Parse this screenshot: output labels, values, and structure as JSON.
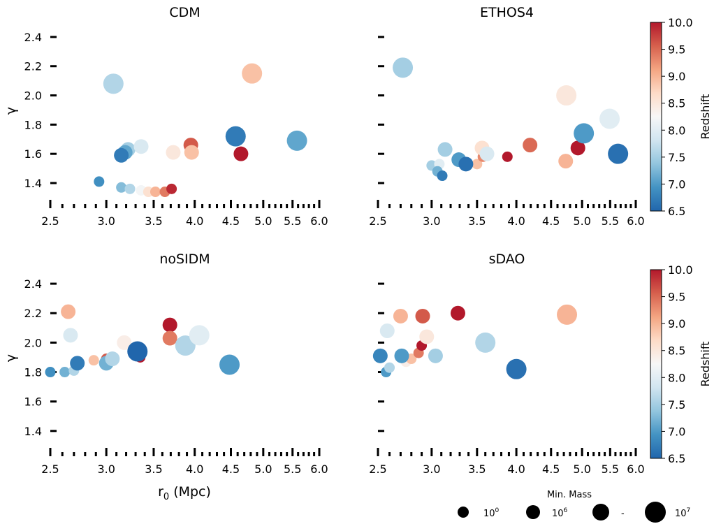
{
  "colorbar": {
    "label": "Redshift",
    "min": 6.5,
    "max": 10.0,
    "ticks": [
      "10.0",
      "9.5",
      "9.0",
      "8.5",
      "8.0",
      "7.5",
      "7.0",
      "6.5"
    ],
    "stops": [
      "#2166ac",
      "#4393c3",
      "#92c5de",
      "#d1e5f0",
      "#f7f7f7",
      "#fddbc7",
      "#f4a582",
      "#d6604d",
      "#b2182b"
    ]
  },
  "legend": {
    "title": "Min. Mass",
    "entries": [
      {
        "base": "10",
        "exp": "0",
        "text": ""
      },
      {
        "base": "10",
        "exp": "6",
        "text": ""
      },
      {
        "base": "",
        "exp": "",
        "text": "-"
      },
      {
        "base": "10",
        "exp": "7",
        "text": ""
      }
    ]
  },
  "axes": {
    "xlabel_base": "r",
    "xlabel_sub": "0",
    "xlabel_rest": " (Mpc)",
    "ylabel": "γ",
    "xticks": [
      "2.5",
      "3.0",
      "3.5",
      "4.0",
      "4.5",
      "5.0",
      "5.5",
      "6.0"
    ],
    "xtick_values": [
      2.5,
      3.0,
      3.5,
      4.0,
      4.5,
      5.0,
      5.5,
      6.0
    ],
    "xscale": "log",
    "xlim": [
      2.5,
      6.0
    ]
  },
  "chart_data": [
    {
      "type": "scatter",
      "title": "CDM",
      "ylim": [
        1.29,
        2.5
      ],
      "yticks": [
        "1.4",
        "1.6",
        "1.8",
        "2.0",
        "2.2",
        "2.4"
      ],
      "ytick_values": [
        1.4,
        1.6,
        1.8,
        2.0,
        2.2,
        2.4
      ],
      "points": [
        {
          "x": 2.93,
          "y": 1.41,
          "z": 6.9,
          "size": 0
        },
        {
          "x": 3.15,
          "y": 1.37,
          "z": 7.3,
          "size": 0
        },
        {
          "x": 3.24,
          "y": 1.36,
          "z": 7.6,
          "size": 0
        },
        {
          "x": 3.36,
          "y": 1.35,
          "z": 8.2,
          "size": 0
        },
        {
          "x": 3.44,
          "y": 1.34,
          "z": 8.6,
          "size": 0
        },
        {
          "x": 3.52,
          "y": 1.34,
          "z": 9.0,
          "size": 0
        },
        {
          "x": 3.63,
          "y": 1.34,
          "z": 9.4,
          "size": 0
        },
        {
          "x": 3.71,
          "y": 1.36,
          "z": 9.9,
          "size": 0
        },
        {
          "x": 3.22,
          "y": 1.63,
          "z": 7.5,
          "size": 1
        },
        {
          "x": 3.19,
          "y": 1.61,
          "z": 7.1,
          "size": 1
        },
        {
          "x": 3.15,
          "y": 1.59,
          "z": 6.7,
          "size": 1
        },
        {
          "x": 3.36,
          "y": 1.65,
          "z": 7.9,
          "size": 1
        },
        {
          "x": 3.73,
          "y": 1.61,
          "z": 8.5,
          "size": 1
        },
        {
          "x": 3.95,
          "y": 1.66,
          "z": 9.6,
          "size": 1
        },
        {
          "x": 3.96,
          "y": 1.61,
          "z": 8.9,
          "size": 1
        },
        {
          "x": 4.65,
          "y": 1.6,
          "z": 10.0,
          "size": 1
        },
        {
          "x": 3.07,
          "y": 2.08,
          "z": 7.6,
          "size": 2
        },
        {
          "x": 4.57,
          "y": 1.72,
          "z": 6.7,
          "size": 2
        },
        {
          "x": 5.58,
          "y": 1.69,
          "z": 7.1,
          "size": 2
        },
        {
          "x": 4.82,
          "y": 2.15,
          "z": 8.9,
          "size": 2
        }
      ]
    },
    {
      "type": "scatter",
      "title": "ETHOS4",
      "ylim": [
        1.29,
        2.5
      ],
      "yticks": [
        "1.4",
        "1.6",
        "1.8",
        "2.0",
        "2.2",
        "2.4"
      ],
      "ytick_values": [
        1.4,
        1.6,
        1.8,
        2.0,
        2.2,
        2.4
      ],
      "points": [
        {
          "x": 3.0,
          "y": 1.52,
          "z": 7.5,
          "size": 0
        },
        {
          "x": 3.08,
          "y": 1.53,
          "z": 8.0,
          "size": 0
        },
        {
          "x": 3.06,
          "y": 1.48,
          "z": 7.2,
          "size": 0
        },
        {
          "x": 3.11,
          "y": 1.45,
          "z": 6.7,
          "size": 0
        },
        {
          "x": 3.5,
          "y": 1.53,
          "z": 8.9,
          "size": 0
        },
        {
          "x": 3.57,
          "y": 1.58,
          "z": 9.3,
          "size": 0
        },
        {
          "x": 3.88,
          "y": 1.58,
          "z": 10.0,
          "size": 0
        },
        {
          "x": 3.14,
          "y": 1.63,
          "z": 7.5,
          "size": 1
        },
        {
          "x": 3.29,
          "y": 1.56,
          "z": 7.0,
          "size": 1
        },
        {
          "x": 3.37,
          "y": 1.53,
          "z": 6.6,
          "size": 1
        },
        {
          "x": 3.56,
          "y": 1.64,
          "z": 8.6,
          "size": 1
        },
        {
          "x": 3.62,
          "y": 1.6,
          "z": 7.9,
          "size": 1
        },
        {
          "x": 4.19,
          "y": 1.66,
          "z": 9.5,
          "size": 1
        },
        {
          "x": 4.73,
          "y": 1.55,
          "z": 9.0,
          "size": 1
        },
        {
          "x": 4.93,
          "y": 1.64,
          "z": 10.0,
          "size": 1
        },
        {
          "x": 2.72,
          "y": 2.19,
          "z": 7.5,
          "size": 2
        },
        {
          "x": 4.74,
          "y": 2.0,
          "z": 8.5,
          "size": 2
        },
        {
          "x": 5.03,
          "y": 1.74,
          "z": 7.0,
          "size": 2
        },
        {
          "x": 5.49,
          "y": 1.84,
          "z": 8.0,
          "size": 2
        },
        {
          "x": 5.65,
          "y": 1.6,
          "z": 6.6,
          "size": 2
        }
      ]
    },
    {
      "type": "scatter",
      "title": "noSIDM",
      "ylim": [
        1.29,
        2.5
      ],
      "yticks": [
        "1.4",
        "1.6",
        "1.8",
        "2.0",
        "2.2",
        "2.4"
      ],
      "ytick_values": [
        1.4,
        1.6,
        1.8,
        2.0,
        2.2,
        2.4
      ],
      "points": [
        {
          "x": 2.5,
          "y": 1.8,
          "z": 6.9,
          "size": 0
        },
        {
          "x": 2.62,
          "y": 1.8,
          "z": 7.2,
          "size": 0
        },
        {
          "x": 2.7,
          "y": 1.81,
          "z": 7.6,
          "size": 0
        },
        {
          "x": 2.88,
          "y": 1.88,
          "z": 8.9,
          "size": 0
        },
        {
          "x": 3.0,
          "y": 1.89,
          "z": 9.6,
          "size": 0
        },
        {
          "x": 3.35,
          "y": 1.9,
          "z": 10.0,
          "size": 0
        },
        {
          "x": 2.73,
          "y": 1.86,
          "z": 6.7,
          "size": 1
        },
        {
          "x": 3.0,
          "y": 1.86,
          "z": 7.2,
          "size": 1
        },
        {
          "x": 3.06,
          "y": 1.89,
          "z": 7.6,
          "size": 1
        },
        {
          "x": 2.65,
          "y": 2.21,
          "z": 9.0,
          "size": 1
        },
        {
          "x": 2.67,
          "y": 2.05,
          "z": 7.9,
          "size": 1
        },
        {
          "x": 3.18,
          "y": 2.0,
          "z": 8.4,
          "size": 1
        },
        {
          "x": 3.69,
          "y": 2.12,
          "z": 10.0,
          "size": 1
        },
        {
          "x": 3.69,
          "y": 2.03,
          "z": 9.4,
          "size": 1
        },
        {
          "x": 3.32,
          "y": 1.94,
          "z": 6.5,
          "size": 2
        },
        {
          "x": 3.88,
          "y": 1.98,
          "z": 7.6,
          "size": 2
        },
        {
          "x": 4.06,
          "y": 2.05,
          "z": 8.0,
          "size": 2
        },
        {
          "x": 4.48,
          "y": 1.85,
          "z": 7.0,
          "size": 2
        }
      ]
    },
    {
      "type": "scatter",
      "title": "sDAO",
      "ylim": [
        1.29,
        2.5
      ],
      "yticks": [
        "1.4",
        "1.6",
        "1.8",
        "2.0",
        "2.2",
        "2.4"
      ],
      "ytick_values": [
        1.4,
        1.6,
        1.8,
        2.0,
        2.2,
        2.4
      ],
      "points": [
        {
          "x": 2.57,
          "y": 1.8,
          "z": 7.0,
          "size": 0
        },
        {
          "x": 2.6,
          "y": 1.83,
          "z": 7.6,
          "size": 0
        },
        {
          "x": 2.75,
          "y": 1.87,
          "z": 8.4,
          "size": 0
        },
        {
          "x": 2.8,
          "y": 1.89,
          "z": 8.9,
          "size": 0
        },
        {
          "x": 2.87,
          "y": 1.93,
          "z": 9.4,
          "size": 0
        },
        {
          "x": 2.9,
          "y": 1.98,
          "z": 10.0,
          "size": 0
        },
        {
          "x": 2.52,
          "y": 1.91,
          "z": 6.8,
          "size": 1
        },
        {
          "x": 2.58,
          "y": 2.08,
          "z": 7.9,
          "size": 1
        },
        {
          "x": 2.71,
          "y": 1.91,
          "z": 7.0,
          "size": 1
        },
        {
          "x": 2.7,
          "y": 2.18,
          "z": 9.0,
          "size": 1
        },
        {
          "x": 2.91,
          "y": 2.18,
          "z": 9.6,
          "size": 1
        },
        {
          "x": 2.95,
          "y": 2.04,
          "z": 8.5,
          "size": 1
        },
        {
          "x": 3.04,
          "y": 1.91,
          "z": 7.5,
          "size": 1
        },
        {
          "x": 3.28,
          "y": 2.2,
          "z": 10.0,
          "size": 1
        },
        {
          "x": 3.6,
          "y": 2.0,
          "z": 7.6,
          "size": 2
        },
        {
          "x": 4.0,
          "y": 1.82,
          "z": 6.6,
          "size": 2
        },
        {
          "x": 4.75,
          "y": 2.19,
          "z": 9.0,
          "size": 2
        }
      ]
    }
  ]
}
